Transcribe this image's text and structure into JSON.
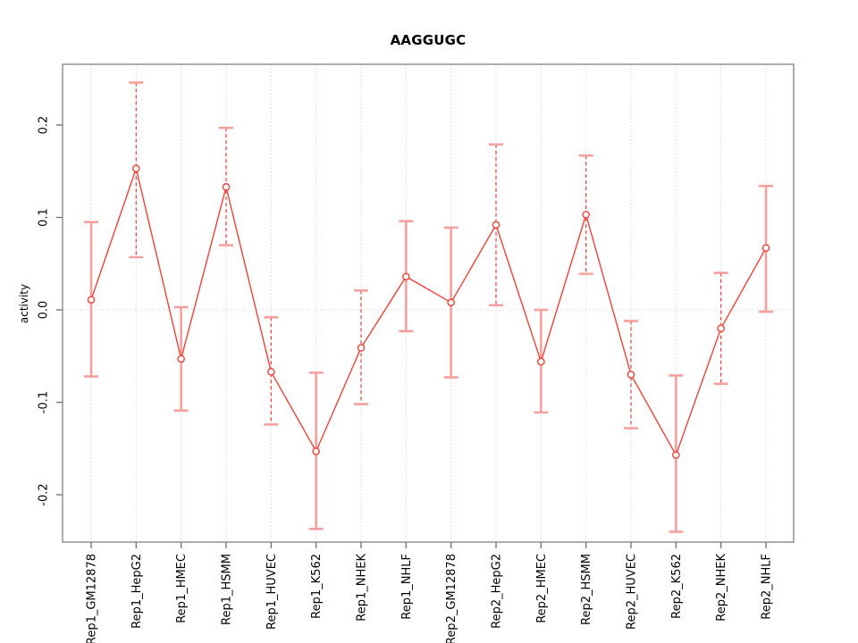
{
  "chart_data": {
    "type": "line",
    "title": "AAGGUGC",
    "xlabel": "",
    "ylabel": "activity",
    "ylim": [
      -0.251,
      0.266
    ],
    "y_ticks": [
      0.2,
      0.1,
      0.0,
      -0.1,
      -0.2
    ],
    "y_tick_labels": [
      "0.2",
      "0.1",
      "0.0",
      "-0.1",
      "-0.2"
    ],
    "zero_reference_line": 0.0,
    "grid": "vertical dotted gridline at each category; horizontal dotted line at y=0",
    "legend_position": "none",
    "marker": "open-circle",
    "colors": {
      "line": "#ee4238",
      "point": "#ee4238",
      "errorbar_solid": "#f6a09d",
      "errorbar_dashed": "#ee4b44",
      "grid": "#d9d9d9",
      "box": "#999999",
      "tick": "#777777",
      "text": "#000000"
    },
    "categories": [
      "Rep1_GM12878",
      "Rep1_HepG2",
      "Rep1_HMEC",
      "Rep1_HSMM",
      "Rep1_HUVEC",
      "Rep1_K562",
      "Rep1_NHEK",
      "Rep1_NHLF",
      "Rep2_GM12878",
      "Rep2_HepG2",
      "Rep2_HMEC",
      "Rep2_HSMM",
      "Rep2_HUVEC",
      "Rep2_K562",
      "Rep2_NHEK",
      "Rep2_NHLF"
    ],
    "series": [
      {
        "name": "activity",
        "values": [
          0.011,
          0.153,
          -0.053,
          0.133,
          -0.067,
          -0.153,
          -0.041,
          0.036,
          0.008,
          0.092,
          -0.056,
          0.103,
          -0.07,
          -0.157,
          -0.02,
          0.067
        ],
        "upper": [
          0.095,
          0.246,
          0.003,
          0.197,
          -0.008,
          -0.068,
          0.021,
          0.096,
          0.089,
          0.179,
          0.0,
          0.167,
          -0.012,
          -0.071,
          0.04,
          0.134
        ],
        "lower": [
          -0.072,
          0.057,
          -0.109,
          0.07,
          -0.124,
          -0.237,
          -0.102,
          -0.023,
          -0.073,
          0.005,
          -0.111,
          0.039,
          -0.128,
          -0.24,
          -0.08,
          -0.002
        ]
      }
    ],
    "error_bar_styles": [
      "solid",
      "dashed",
      "solid",
      "dashed",
      "dashed",
      "solid",
      "dashed",
      "solid",
      "solid",
      "dashed",
      "solid",
      "dashed",
      "dashed",
      "solid",
      "dashed",
      "solid"
    ]
  }
}
